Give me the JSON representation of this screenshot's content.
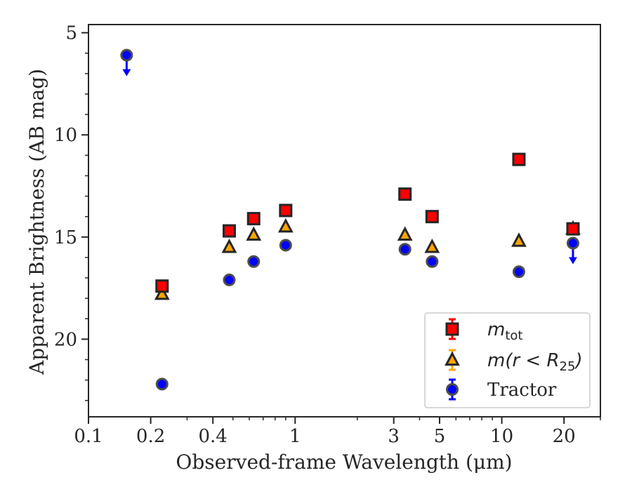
{
  "chart_data": {
    "type": "scatter",
    "title": "",
    "xlabel": "Observed-frame Wavelength (μm)",
    "ylabel": "Apparent Brightness (AB mag)",
    "x_scale": "log",
    "xlim": [
      0.1,
      30
    ],
    "ylim": [
      23.8,
      4.6
    ],
    "y_inverted": true,
    "grid": false,
    "legend_position": "lower-right",
    "x_ticks": [
      {
        "value": 0.1,
        "label": "0.1"
      },
      {
        "value": 0.2,
        "label": "0.2"
      },
      {
        "value": 0.4,
        "label": "0.4"
      },
      {
        "value": 1,
        "label": "1"
      },
      {
        "value": 3,
        "label": "3"
      },
      {
        "value": 5,
        "label": "5"
      },
      {
        "value": 10,
        "label": "10"
      },
      {
        "value": 20,
        "label": "20"
      }
    ],
    "y_ticks": [
      {
        "value": 5,
        "label": "5"
      },
      {
        "value": 10,
        "label": "10"
      },
      {
        "value": 15,
        "label": "15"
      },
      {
        "value": 20,
        "label": "20"
      }
    ],
    "series": [
      {
        "name": "m_tot",
        "legend_main": "m",
        "legend_sub": "tot",
        "legend_tail": "",
        "marker": "square",
        "color": "#ff0000",
        "edge": "#262626",
        "points": [
          {
            "x": 0.227,
            "y": 17.4
          },
          {
            "x": 0.48,
            "y": 14.7
          },
          {
            "x": 0.63,
            "y": 14.1
          },
          {
            "x": 0.9,
            "y": 13.7
          },
          {
            "x": 3.4,
            "y": 12.9
          },
          {
            "x": 4.6,
            "y": 14.0
          },
          {
            "x": 12.1,
            "y": 11.2
          },
          {
            "x": 22.1,
            "y": 14.6
          }
        ]
      },
      {
        "name": "m(r < R_25)",
        "legend_main": "m(r < R",
        "legend_sub": "25",
        "legend_tail": ")",
        "marker": "triangle",
        "color": "#ffa500",
        "edge": "#262626",
        "points": [
          {
            "x": 0.227,
            "y": 17.8
          },
          {
            "x": 0.48,
            "y": 15.5
          },
          {
            "x": 0.63,
            "y": 14.9
          },
          {
            "x": 0.9,
            "y": 14.5
          },
          {
            "x": 3.4,
            "y": 14.9
          },
          {
            "x": 4.6,
            "y": 15.5
          },
          {
            "x": 12.1,
            "y": 15.2
          },
          {
            "x": 22.1,
            "y": 14.6
          }
        ]
      },
      {
        "name": "Tractor",
        "legend_main": "Tractor",
        "legend_sub": "",
        "legend_tail": "",
        "marker": "circle",
        "color": "#0000ff",
        "edge": "#4d4d4d",
        "points": [
          {
            "x": 0.153,
            "y": 6.1,
            "upper_limit": true
          },
          {
            "x": 0.227,
            "y": 22.2
          },
          {
            "x": 0.48,
            "y": 17.1
          },
          {
            "x": 0.63,
            "y": 16.2
          },
          {
            "x": 0.9,
            "y": 15.4
          },
          {
            "x": 3.4,
            "y": 15.6
          },
          {
            "x": 4.6,
            "y": 16.2
          },
          {
            "x": 12.1,
            "y": 16.7
          },
          {
            "x": 22.1,
            "y": 15.3,
            "upper_limit": true
          }
        ]
      }
    ]
  }
}
